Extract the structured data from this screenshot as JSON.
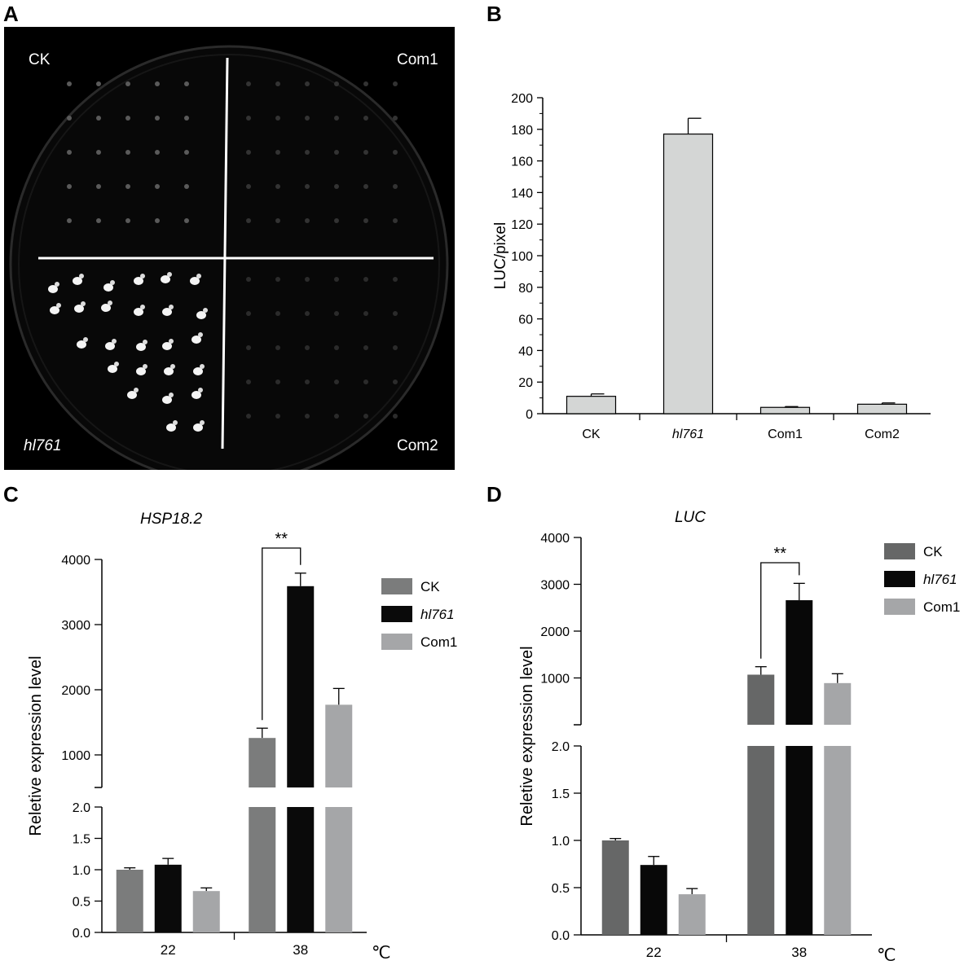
{
  "panel_labels": {
    "a": "A",
    "b": "B",
    "c": "C",
    "d": "D"
  },
  "photo": {
    "labels": {
      "top_left": "CK",
      "top_right": "Com1",
      "bottom_left": "hl761",
      "bottom_right": "Com2"
    },
    "background_color": "#000000",
    "line_color": "#ffffff"
  },
  "chart_data": [
    {
      "id": "B",
      "type": "bar",
      "categories": [
        "CK",
        "hl761",
        "Com1",
        "Com2"
      ],
      "italic_categories": [
        "hl761"
      ],
      "values": [
        11,
        177,
        4,
        6
      ],
      "errors": [
        1.5,
        10,
        0.5,
        0.8
      ],
      "ylabel": "LUC/pixel",
      "ylim": [
        0,
        200
      ],
      "yticks": [
        0,
        20,
        40,
        60,
        80,
        100,
        120,
        140,
        160,
        180,
        200
      ],
      "bar_color": "#d4d6d5"
    },
    {
      "id": "C",
      "type": "bar",
      "title": "HSP18.2",
      "categories": [
        "22",
        "38"
      ],
      "xunit": "℃",
      "ylabel": "Reletive expression level",
      "series": [
        {
          "name": "CK",
          "color": "#7b7c7c",
          "values": [
            1.0,
            1260
          ],
          "errors": [
            0.03,
            150
          ]
        },
        {
          "name": "hl761",
          "color": "#0a0a0a",
          "values": [
            1.08,
            3590
          ],
          "errors": [
            0.1,
            200
          ]
        },
        {
          "name": "Com1",
          "color": "#a5a6a8",
          "values": [
            0.66,
            1770
          ],
          "errors": [
            0.05,
            250
          ]
        }
      ],
      "italic_series": [
        "hl761"
      ],
      "axis_break": true,
      "lower_ylim": [
        0,
        2
      ],
      "lower_yticks": [
        "0.0",
        "0.5",
        "1.0",
        "1.5",
        "2.0"
      ],
      "upper_ylim": [
        500,
        4000
      ],
      "upper_yticks": [
        "1000",
        "2000",
        "3000",
        "4000"
      ],
      "annotation": "**"
    },
    {
      "id": "D",
      "type": "bar",
      "title": "LUC",
      "categories": [
        "22",
        "38"
      ],
      "xunit": "℃",
      "ylabel": "Reletive expression level",
      "series": [
        {
          "name": "CK",
          "color": "#666767",
          "values": [
            1.0,
            1070
          ],
          "errors": [
            0.02,
            170
          ]
        },
        {
          "name": "hl761",
          "color": "#080808",
          "values": [
            0.74,
            2660
          ],
          "errors": [
            0.09,
            360
          ]
        },
        {
          "name": "Com1",
          "color": "#a5a6a8",
          "values": [
            0.43,
            890
          ],
          "errors": [
            0.06,
            200
          ]
        }
      ],
      "italic_series": [
        "hl761"
      ],
      "axis_break": true,
      "lower_ylim": [
        0,
        2
      ],
      "lower_yticks": [
        "0.0",
        "0.5",
        "1.0",
        "1.5",
        "2.0"
      ],
      "upper_ylim": [
        0,
        4000
      ],
      "upper_yticks": [
        "1000",
        "2000",
        "3000",
        "4000"
      ],
      "annotation": "**"
    }
  ]
}
